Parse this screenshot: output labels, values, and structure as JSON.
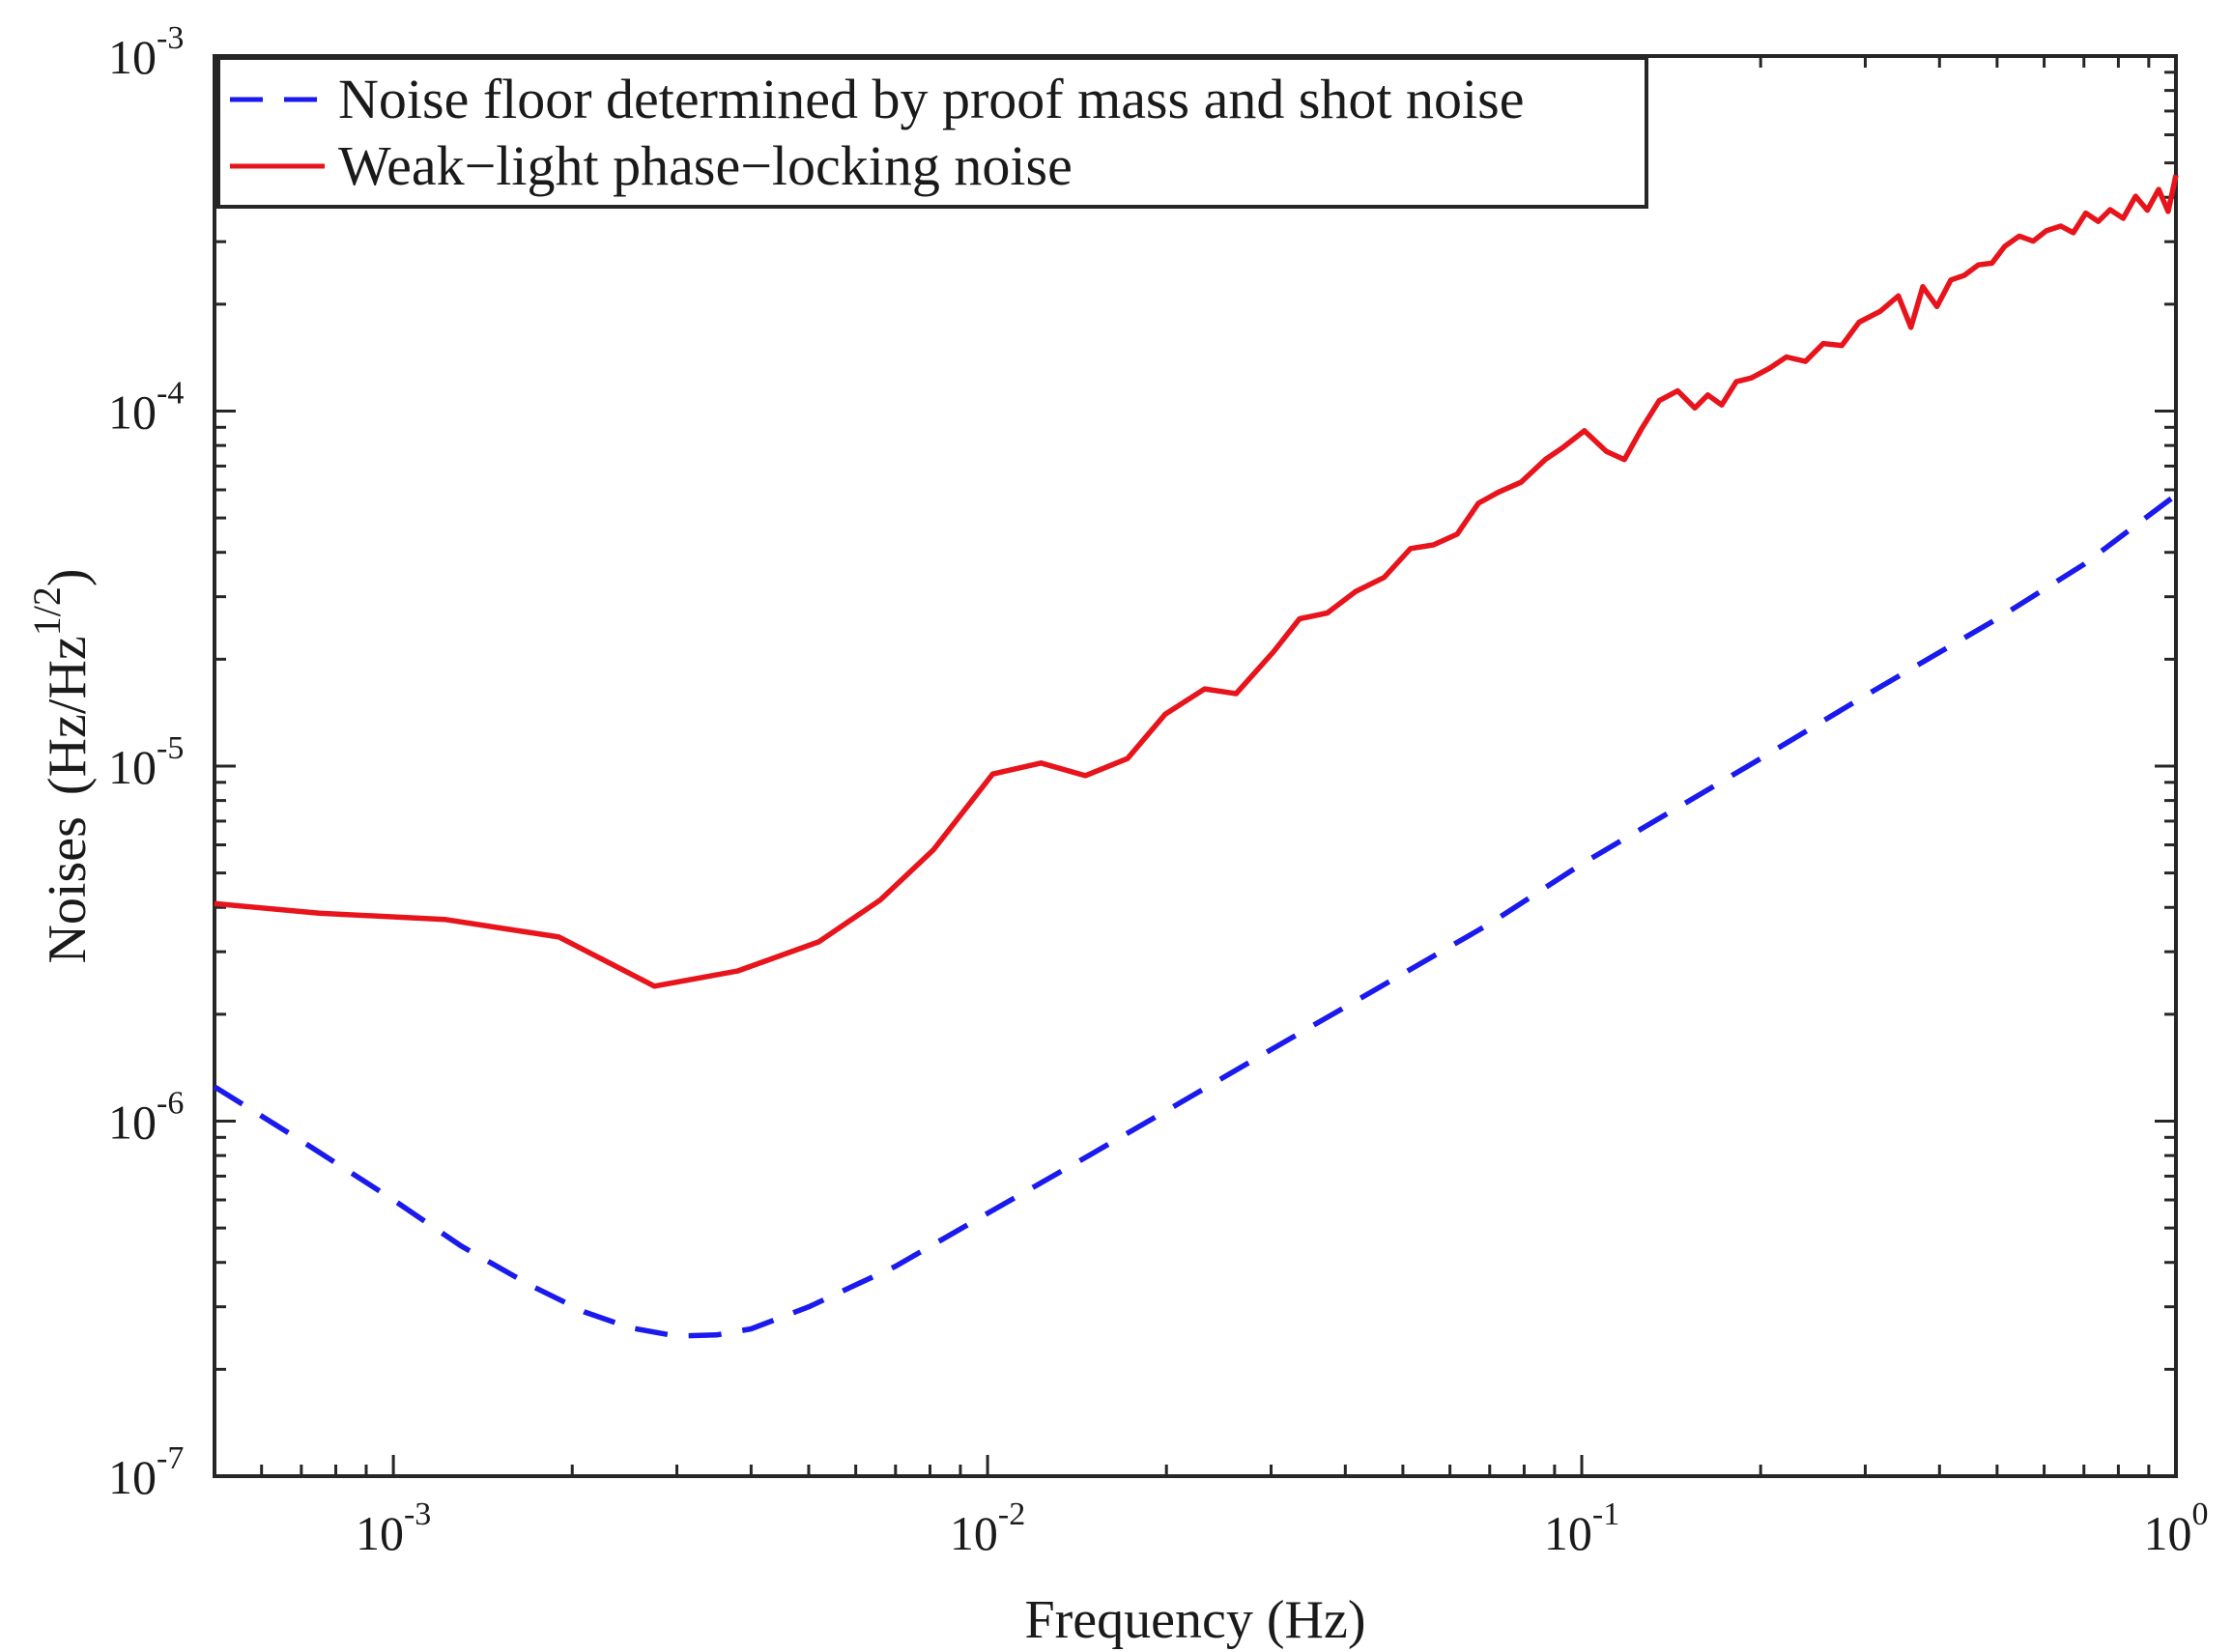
{
  "chart_data": {
    "type": "line",
    "xscale": "log",
    "yscale": "log",
    "xlabel": "Frequency (Hz)",
    "ylabel": "Noises",
    "ylabel_unit": {
      "open": "(Hz/Hz",
      "exponent": "1/2",
      "close": ")"
    },
    "xlim": [
      0.0005,
      1
    ],
    "ylim": [
      1e-07,
      0.001
    ],
    "x_ticks": [
      {
        "value": 0.001,
        "base": "10",
        "exp": "-3"
      },
      {
        "value": 0.01,
        "base": "10",
        "exp": "-2"
      },
      {
        "value": 0.1,
        "base": "10",
        "exp": "-1"
      },
      {
        "value": 1,
        "base": "10",
        "exp": "0"
      }
    ],
    "y_ticks": [
      {
        "value": 1e-07,
        "base": "10",
        "exp": "-7"
      },
      {
        "value": 1e-06,
        "base": "10",
        "exp": "-6"
      },
      {
        "value": 1e-05,
        "base": "10",
        "exp": "-5"
      },
      {
        "value": 0.0001,
        "base": "10",
        "exp": "-4"
      },
      {
        "value": 0.001,
        "base": "10",
        "exp": "-3"
      }
    ],
    "grid": false,
    "legend_position": "top-left",
    "series": [
      {
        "name": "Noise floor determined by proof mass and shot noise",
        "color": "#1a1aee",
        "style": "dashed",
        "x": [
          0.0005,
          0.0007,
          0.001,
          0.0013,
          0.0017,
          0.0021,
          0.0025,
          0.003,
          0.0035,
          0.004,
          0.005,
          0.007,
          0.01,
          0.015,
          0.02,
          0.03,
          0.05,
          0.07,
          0.1,
          0.15,
          0.2,
          0.3,
          0.5,
          0.7,
          1.0
        ],
        "y": [
          1.25e-06,
          8.8e-07,
          6e-07,
          4.45e-07,
          3.45e-07,
          2.9e-07,
          2.62e-07,
          2.48e-07,
          2.5e-07,
          2.6e-07,
          3e-07,
          3.9e-07,
          5.5e-07,
          8.1e-07,
          1.07e-06,
          1.59e-06,
          2.6e-06,
          3.6e-06,
          5.3e-06,
          7.9e-06,
          1.05e-05,
          1.58e-05,
          2.6e-05,
          3.7e-05,
          5.8e-05
        ]
      },
      {
        "name": "Weak−light phase−locking noise",
        "color": "#e8141c",
        "style": "solid",
        "x": [
          0.0005,
          0.00075,
          0.00122,
          0.0019,
          0.00275,
          0.0038,
          0.0052,
          0.0066,
          0.0081,
          0.0102,
          0.0123,
          0.0146,
          0.0172,
          0.0199,
          0.0232,
          0.0262,
          0.0303,
          0.0335,
          0.0373,
          0.0416,
          0.0465,
          0.0515,
          0.0563,
          0.0617,
          0.067,
          0.0723,
          0.079,
          0.0868,
          0.093,
          0.101,
          0.11,
          0.118,
          0.126,
          0.135,
          0.145,
          0.155,
          0.163,
          0.172,
          0.182,
          0.193,
          0.207,
          0.221,
          0.238,
          0.255,
          0.274,
          0.293,
          0.318,
          0.341,
          0.358,
          0.375,
          0.396,
          0.418,
          0.44,
          0.465,
          0.49,
          0.515,
          0.545,
          0.575,
          0.605,
          0.64,
          0.672,
          0.705,
          0.74,
          0.775,
          0.815,
          0.855,
          0.895,
          0.935,
          0.97,
          1.0
        ],
        "y": [
          4.1e-06,
          3.85e-06,
          3.7e-06,
          3.3e-06,
          2.4e-06,
          2.65e-06,
          3.2e-06,
          4.2e-06,
          5.8e-06,
          9.5e-06,
          1.02e-05,
          9.4e-06,
          1.05e-05,
          1.4e-05,
          1.65e-05,
          1.6e-05,
          2.1e-05,
          2.6e-05,
          2.7e-05,
          3.1e-05,
          3.4e-05,
          4.1e-05,
          4.2e-05,
          4.5e-05,
          5.5e-05,
          5.9e-05,
          6.3e-05,
          7.3e-05,
          7.9e-05,
          8.8e-05,
          7.7e-05,
          7.3e-05,
          8.9e-05,
          0.000107,
          0.000114,
          0.000102,
          0.000111,
          0.000104,
          0.000121,
          0.000124,
          0.000132,
          0.000142,
          0.000138,
          0.000155,
          0.000153,
          0.000178,
          0.000191,
          0.000211,
          0.000172,
          0.000224,
          0.000197,
          0.000234,
          0.000241,
          0.000258,
          0.000261,
          0.000291,
          0.000311,
          0.000301,
          0.000322,
          0.000332,
          0.000318,
          0.000361,
          0.000342,
          0.000369,
          0.000349,
          0.000403,
          0.000368,
          0.000421,
          0.000365,
          0.000462
        ]
      }
    ]
  }
}
